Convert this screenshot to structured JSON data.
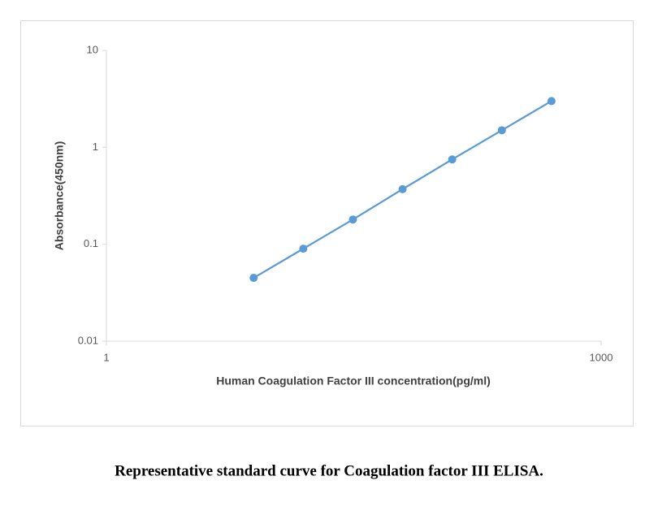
{
  "chart_data": {
    "type": "line",
    "xlabel": "Human Coagulation Factor III  concentration(pg/ml)",
    "ylabel": "Absorbance(450nm)",
    "caption": "Representative standard curve for Coagulation factor III ELISA.",
    "x": [
      7.8125,
      15.625,
      31.25,
      62.5,
      125,
      250,
      500
    ],
    "series": [
      {
        "name": "Absorbance",
        "color": "#5b9bd5",
        "values": [
          0.045,
          0.09,
          0.18,
          0.37,
          0.75,
          1.5,
          3.0
        ]
      }
    ],
    "xscale": "log",
    "yscale": "log",
    "xlim": [
      1,
      1000
    ],
    "xticks": [
      1,
      1000
    ],
    "ylim": [
      0.01,
      10
    ],
    "yticks": [
      0.01,
      0.1,
      1,
      10
    ]
  }
}
